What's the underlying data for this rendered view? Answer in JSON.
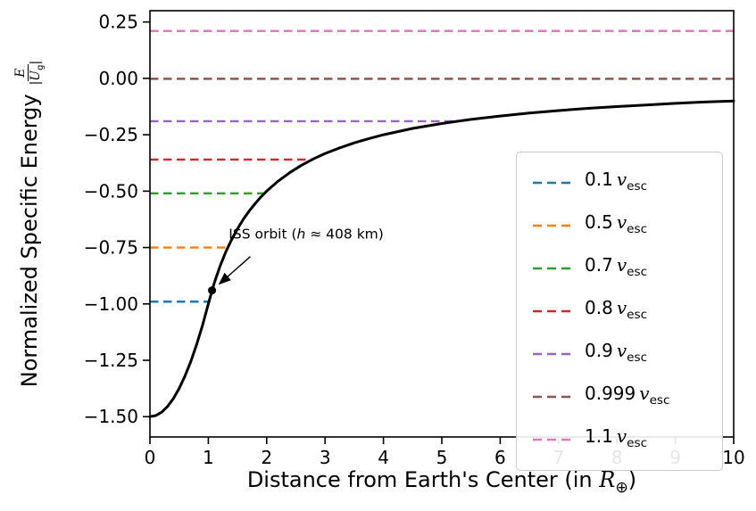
{
  "axes": {
    "ylabel_text": "Normalized Specific Energy",
    "y_frac": {
      "num": "E",
      "den_pre": "|",
      "den_sym": "U",
      "den_sub": "g",
      "den_post": "|"
    },
    "xlabel_pre": "Distance from Earth's Center (in ",
    "xlabel_sym": "R",
    "xlabel_sub": "⊕",
    "xlabel_post": ")"
  },
  "chart_data": {
    "type": "line",
    "title": "",
    "xlabel": "Distance from Earth's Center (in R⊕)",
    "ylabel": "Normalized Specific Energy E/|Ug|",
    "xlim": [
      0,
      10
    ],
    "ylim": [
      -1.59,
      0.3
    ],
    "grid": false,
    "legend_position": "center right",
    "xticks": [
      {
        "v": 0,
        "label": "0"
      },
      {
        "v": 1,
        "label": "1"
      },
      {
        "v": 2,
        "label": "2"
      },
      {
        "v": 3,
        "label": "3"
      },
      {
        "v": 4,
        "label": "4"
      },
      {
        "v": 5,
        "label": "5"
      },
      {
        "v": 6,
        "label": "6"
      },
      {
        "v": 7,
        "label": "7"
      },
      {
        "v": 8,
        "label": "8"
      },
      {
        "v": 9,
        "label": "9"
      },
      {
        "v": 10,
        "label": "10"
      }
    ],
    "yticks": [
      {
        "v": 0.25,
        "label": "0.25"
      },
      {
        "v": 0.0,
        "label": "0.00"
      },
      {
        "v": -0.25,
        "label": "−0.25"
      },
      {
        "v": -0.5,
        "label": "−0.50"
      },
      {
        "v": -0.75,
        "label": "−0.75"
      },
      {
        "v": -1.0,
        "label": "−1.00"
      },
      {
        "v": -1.25,
        "label": "−1.25"
      },
      {
        "v": -1.5,
        "label": "−1.50"
      }
    ],
    "curve": {
      "name": "gravitational-potential-energy-curve",
      "color": "#000000",
      "points": [
        [
          0,
          -1.5
        ],
        [
          0.1,
          -1.495
        ],
        [
          0.2,
          -1.48
        ],
        [
          0.3,
          -1.455
        ],
        [
          0.4,
          -1.42
        ],
        [
          0.5,
          -1.375
        ],
        [
          0.6,
          -1.32
        ],
        [
          0.7,
          -1.255
        ],
        [
          0.8,
          -1.18
        ],
        [
          0.9,
          -1.095
        ],
        [
          1.0,
          -1.0
        ],
        [
          1.1,
          -0.909
        ],
        [
          1.2,
          -0.833
        ],
        [
          1.3,
          -0.769
        ],
        [
          1.4,
          -0.714
        ],
        [
          1.5,
          -0.667
        ],
        [
          1.6,
          -0.625
        ],
        [
          1.7,
          -0.588
        ],
        [
          1.8,
          -0.556
        ],
        [
          1.9,
          -0.526
        ],
        [
          2.0,
          -0.5
        ],
        [
          2.2,
          -0.455
        ],
        [
          2.4,
          -0.417
        ],
        [
          2.6,
          -0.385
        ],
        [
          2.8,
          -0.357
        ],
        [
          3.0,
          -0.333
        ],
        [
          3.25,
          -0.308
        ],
        [
          3.5,
          -0.286
        ],
        [
          3.75,
          -0.267
        ],
        [
          4.0,
          -0.25
        ],
        [
          4.5,
          -0.222
        ],
        [
          5.0,
          -0.2
        ],
        [
          5.5,
          -0.182
        ],
        [
          6.0,
          -0.167
        ],
        [
          6.5,
          -0.154
        ],
        [
          7.0,
          -0.143
        ],
        [
          7.5,
          -0.133
        ],
        [
          8.0,
          -0.125
        ],
        [
          8.5,
          -0.118
        ],
        [
          9.0,
          -0.111
        ],
        [
          9.5,
          -0.105
        ],
        [
          10.0,
          -0.1
        ]
      ]
    },
    "vesc_lines": [
      {
        "label_value": "0.1",
        "label_sym": "v",
        "label_sub": "esc",
        "color": "#1f77b4",
        "y": -0.99,
        "x_start": 0,
        "x_end": 1.01
      },
      {
        "label_value": "0.5",
        "label_sym": "v",
        "label_sub": "esc",
        "color": "#ff7f0e",
        "y": -0.75,
        "x_start": 0,
        "x_end": 1.333
      },
      {
        "label_value": "0.7",
        "label_sym": "v",
        "label_sub": "esc",
        "color": "#2ca02c",
        "y": -0.51,
        "x_start": 0,
        "x_end": 1.961
      },
      {
        "label_value": "0.8",
        "label_sym": "v",
        "label_sub": "esc",
        "color": "#d62728",
        "y": -0.36,
        "x_start": 0,
        "x_end": 2.778
      },
      {
        "label_value": "0.9",
        "label_sym": "v",
        "label_sub": "esc",
        "color": "#9467bd",
        "y": -0.19,
        "x_start": 0,
        "x_end": 5.263
      },
      {
        "label_value": "0.999",
        "label_sym": "v",
        "label_sub": "esc",
        "color": "#8c564b",
        "y": -0.002,
        "x_start": 0,
        "x_end": 10
      },
      {
        "label_value": "1.1",
        "label_sym": "v",
        "label_sub": "esc",
        "color": "#e377c2",
        "y": 0.21,
        "x_start": 0,
        "x_end": 10
      }
    ],
    "annotation": {
      "text_pre": "ISS orbit (",
      "text_sym": "h",
      "text_post": " ≈ 408 km)",
      "target": [
        1.064,
        -0.94
      ],
      "text_pos": [
        1.35,
        -0.71
      ],
      "arrow_start": [
        1.72,
        -0.79
      ]
    }
  }
}
